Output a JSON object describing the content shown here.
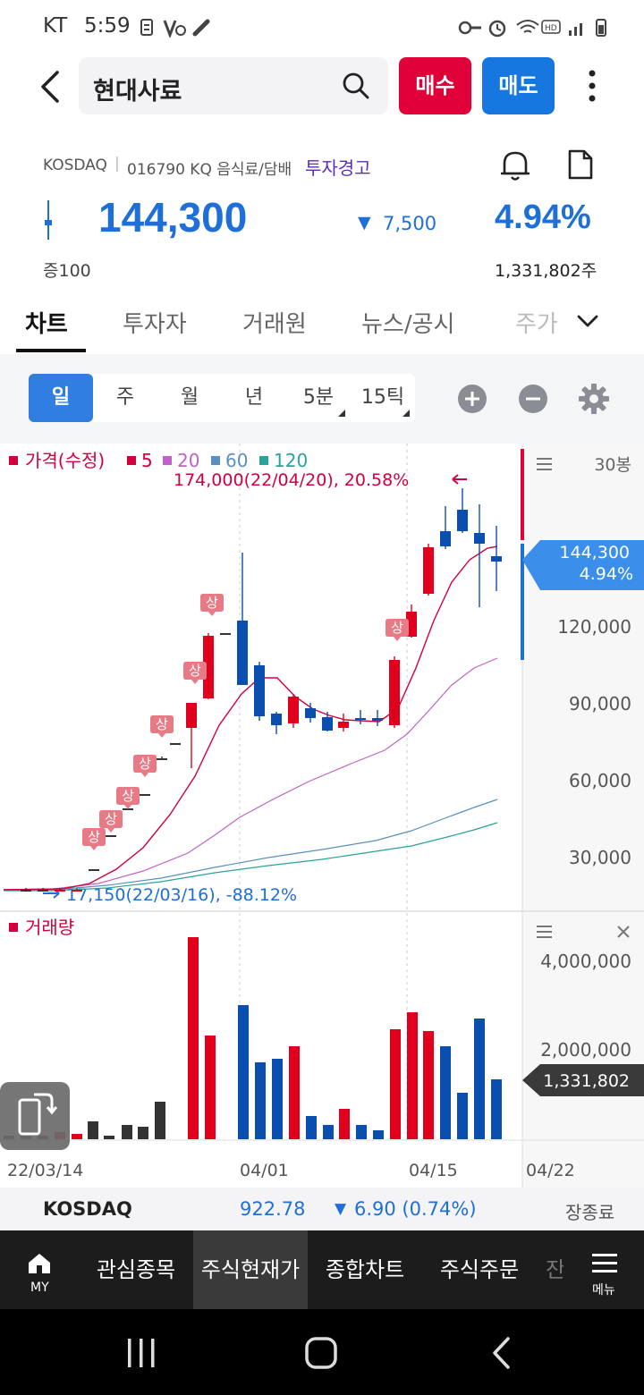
{
  "status_bar": {
    "carrier": "KT",
    "time": "5:59"
  },
  "header": {
    "back_icon": "chevron-left-icon",
    "stock_name": "현대사료",
    "search_icon": "search-icon",
    "buy_label": "매수",
    "sell_label": "매도",
    "more_icon": "more-vertical-icon"
  },
  "stock": {
    "exchange": "KOSDAQ",
    "code_sector": "016790 KQ 음식료/담배",
    "warning": "투자경고",
    "price": "144,300",
    "change": "7,500",
    "change_pct": "4.94%",
    "margin": "증100",
    "volume": "1,331,802주",
    "price_color": "#1f6fd8"
  },
  "tabs": [
    "차트",
    "투자자",
    "거래원",
    "뉴스/공시",
    "주가"
  ],
  "periods": [
    "일",
    "주",
    "월",
    "년",
    "5분",
    "15틱"
  ],
  "chart": {
    "legend_title": "가격(수정)",
    "ma": [
      {
        "label": "5",
        "color": "#d2003c"
      },
      {
        "label": "20",
        "color": "#c062c8"
      },
      {
        "label": "60",
        "color": "#5a90c0"
      },
      {
        "label": "120",
        "color": "#2aa39a"
      }
    ],
    "bars_label": "30봉",
    "max_annotation": "174,000(22/04/20), 20.58%",
    "min_annotation": "17,150(22/03/16), -88.12%",
    "price_axis": [
      "120,000",
      "90,000",
      "60,000",
      "30,000"
    ],
    "current_price": "144,300",
    "current_pct": "4.94%",
    "limit_up_label": "상",
    "volume_title": "거래량",
    "volume_axis": [
      "4,000,000",
      "2,000,000"
    ],
    "current_volume": "1,331,802",
    "date_axis": [
      "22/03/14",
      "04/01",
      "04/15",
      "04/22"
    ]
  },
  "market": {
    "name": "KOSDAQ",
    "index": "922.78",
    "change": "6.90 (0.74%)",
    "status": "장종료"
  },
  "bottom_nav": {
    "my_label": "MY",
    "items": [
      "관심종목",
      "주식현재가",
      "종합차트",
      "주식주문",
      "잔"
    ],
    "menu_label": "메뉴"
  }
}
